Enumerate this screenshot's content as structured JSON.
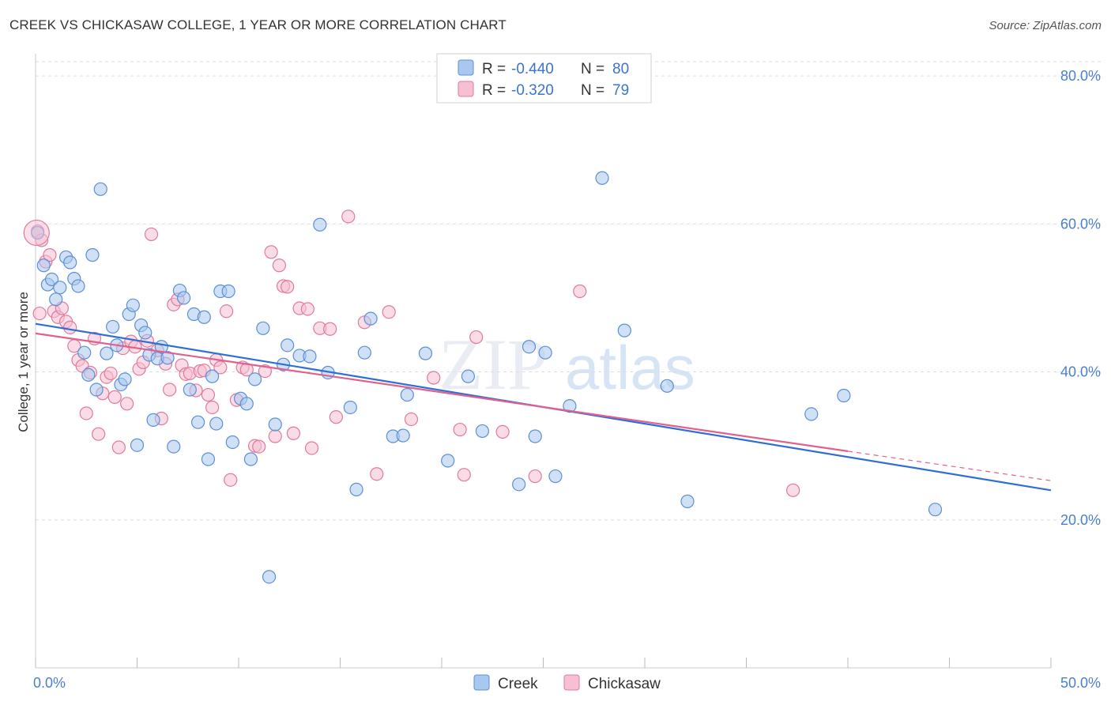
{
  "title": "CREEK VS CHICKASAW COLLEGE, 1 YEAR OR MORE CORRELATION CHART",
  "source": "Source: ZipAtlas.com",
  "watermark": {
    "zip": "ZIP",
    "atlas": "atlas"
  },
  "colors": {
    "creek_fill": "#a9c8ef",
    "creek_stroke": "#5b8fd6",
    "creek_line": "#2f6fd4",
    "chickasaw_fill": "#f6c0d2",
    "chickasaw_stroke": "#e07a9d",
    "chickasaw_line": "#e0608f",
    "grid": "#dddddd",
    "axis_text": "#4a7fd0"
  },
  "legend": {
    "rows": [
      {
        "r_label": "R =",
        "r_value": "-0.440",
        "n_label": "N =",
        "n_value": "80"
      },
      {
        "r_label": "R =",
        "r_value": "-0.320",
        "n_label": "N =",
        "n_value": "79"
      }
    ]
  },
  "chart_data": {
    "type": "scatter",
    "title": "CREEK VS CHICKASAW COLLEGE, 1 YEAR OR MORE CORRELATION CHART",
    "xlabel": "",
    "ylabel": "College, 1 year or more",
    "xlim": [
      0,
      50
    ],
    "ylim": [
      0,
      83
    ],
    "x_tick_labels": [
      {
        "value": 0,
        "label": "0.0%"
      },
      {
        "value": 50,
        "label": "50.0%"
      }
    ],
    "y_tick_labels": [
      {
        "value": 80,
        "label": "80.0%"
      },
      {
        "value": 60,
        "label": "60.0%"
      },
      {
        "value": 40,
        "label": "40.0%"
      },
      {
        "value": 20,
        "label": "20.0%"
      }
    ],
    "series": [
      {
        "name": "Creek",
        "regression": {
          "x0": 0,
          "y0": 46.5,
          "x1": 50,
          "y1": 24.0,
          "dash_from": null
        },
        "points": [
          [
            0.1,
            58.8
          ],
          [
            0.4,
            54.4
          ],
          [
            0.6,
            51.8
          ],
          [
            0.8,
            52.5
          ],
          [
            1.0,
            49.8
          ],
          [
            1.2,
            51.4
          ],
          [
            1.5,
            55.5
          ],
          [
            1.7,
            54.8
          ],
          [
            1.9,
            52.6
          ],
          [
            2.1,
            51.6
          ],
          [
            2.4,
            42.6
          ],
          [
            2.6,
            39.6
          ],
          [
            2.8,
            55.8
          ],
          [
            3.0,
            37.6
          ],
          [
            3.2,
            64.7
          ],
          [
            3.5,
            42.5
          ],
          [
            3.8,
            46.1
          ],
          [
            4.0,
            43.6
          ],
          [
            4.2,
            38.3
          ],
          [
            4.4,
            39.0
          ],
          [
            4.6,
            47.8
          ],
          [
            4.8,
            49.0
          ],
          [
            5.0,
            30.1
          ],
          [
            5.2,
            46.3
          ],
          [
            5.4,
            45.3
          ],
          [
            5.6,
            42.3
          ],
          [
            5.8,
            33.5
          ],
          [
            6.0,
            41.8
          ],
          [
            6.2,
            43.4
          ],
          [
            6.5,
            41.9
          ],
          [
            6.8,
            29.9
          ],
          [
            7.1,
            51.0
          ],
          [
            7.3,
            50.0
          ],
          [
            7.6,
            37.6
          ],
          [
            7.8,
            47.8
          ],
          [
            8.0,
            33.2
          ],
          [
            8.3,
            47.4
          ],
          [
            8.5,
            28.2
          ],
          [
            8.7,
            39.4
          ],
          [
            8.9,
            33.0
          ],
          [
            9.1,
            50.9
          ],
          [
            9.5,
            50.9
          ],
          [
            9.7,
            30.5
          ],
          [
            10.1,
            36.4
          ],
          [
            10.4,
            35.7
          ],
          [
            10.6,
            28.2
          ],
          [
            10.8,
            39.0
          ],
          [
            11.2,
            45.9
          ],
          [
            11.5,
            12.3
          ],
          [
            11.8,
            32.9
          ],
          [
            12.2,
            41.0
          ],
          [
            12.4,
            43.6
          ],
          [
            13.0,
            42.2
          ],
          [
            13.5,
            42.1
          ],
          [
            14.0,
            59.9
          ],
          [
            14.4,
            39.9
          ],
          [
            15.5,
            35.2
          ],
          [
            15.8,
            24.1
          ],
          [
            16.2,
            42.6
          ],
          [
            16.5,
            47.2
          ],
          [
            17.6,
            31.3
          ],
          [
            18.1,
            31.4
          ],
          [
            18.3,
            36.9
          ],
          [
            19.2,
            42.5
          ],
          [
            20.3,
            28.0
          ],
          [
            21.3,
            39.4
          ],
          [
            22.0,
            32.0
          ],
          [
            23.8,
            24.8
          ],
          [
            24.3,
            43.4
          ],
          [
            24.6,
            31.3
          ],
          [
            25.1,
            42.6
          ],
          [
            25.6,
            25.9
          ],
          [
            26.3,
            35.4
          ],
          [
            27.9,
            66.2
          ],
          [
            29.0,
            45.6
          ],
          [
            31.1,
            38.1
          ],
          [
            32.1,
            22.5
          ],
          [
            38.2,
            34.3
          ],
          [
            39.8,
            36.8
          ],
          [
            44.3,
            21.4
          ]
        ]
      },
      {
        "name": "Chickasaw",
        "regression": {
          "x0": 0,
          "y0": 45.2,
          "x1": 50,
          "y1": 25.3,
          "dash_from": 40
        },
        "points": [
          [
            0.1,
            59.0
          ],
          [
            0.3,
            57.8
          ],
          [
            0.5,
            54.9
          ],
          [
            0.7,
            55.8
          ],
          [
            0.9,
            48.2
          ],
          [
            1.1,
            47.4
          ],
          [
            1.3,
            48.6
          ],
          [
            1.5,
            46.8
          ],
          [
            1.7,
            46.0
          ],
          [
            1.9,
            43.5
          ],
          [
            2.1,
            41.6
          ],
          [
            2.3,
            40.8
          ],
          [
            2.5,
            34.4
          ],
          [
            2.7,
            39.9
          ],
          [
            2.9,
            44.5
          ],
          [
            3.1,
            31.6
          ],
          [
            3.3,
            37.1
          ],
          [
            3.5,
            39.3
          ],
          [
            3.7,
            39.8
          ],
          [
            3.9,
            36.6
          ],
          [
            4.1,
            29.8
          ],
          [
            4.3,
            43.2
          ],
          [
            4.5,
            35.7
          ],
          [
            4.7,
            44.1
          ],
          [
            4.9,
            43.4
          ],
          [
            5.1,
            40.4
          ],
          [
            5.3,
            41.3
          ],
          [
            5.5,
            44.2
          ],
          [
            5.7,
            58.6
          ],
          [
            6.0,
            42.9
          ],
          [
            6.2,
            33.7
          ],
          [
            6.4,
            41.1
          ],
          [
            6.6,
            37.6
          ],
          [
            6.8,
            49.1
          ],
          [
            7.0,
            49.8
          ],
          [
            7.2,
            40.9
          ],
          [
            7.4,
            39.7
          ],
          [
            7.6,
            39.8
          ],
          [
            7.9,
            37.5
          ],
          [
            8.1,
            40.1
          ],
          [
            8.3,
            40.2
          ],
          [
            8.5,
            36.9
          ],
          [
            8.7,
            35.2
          ],
          [
            8.9,
            41.6
          ],
          [
            9.1,
            40.6
          ],
          [
            9.4,
            48.2
          ],
          [
            9.6,
            25.4
          ],
          [
            9.9,
            36.2
          ],
          [
            10.2,
            40.6
          ],
          [
            10.4,
            40.3
          ],
          [
            10.8,
            30.0
          ],
          [
            11.0,
            29.9
          ],
          [
            11.3,
            40.1
          ],
          [
            11.6,
            56.2
          ],
          [
            11.8,
            31.3
          ],
          [
            12.0,
            54.4
          ],
          [
            12.2,
            51.6
          ],
          [
            12.4,
            51.5
          ],
          [
            12.7,
            31.7
          ],
          [
            13.0,
            48.6
          ],
          [
            13.4,
            48.5
          ],
          [
            13.6,
            29.7
          ],
          [
            14.0,
            45.9
          ],
          [
            14.5,
            45.8
          ],
          [
            14.8,
            33.9
          ],
          [
            15.4,
            61.0
          ],
          [
            16.2,
            46.7
          ],
          [
            16.8,
            26.2
          ],
          [
            17.4,
            48.1
          ],
          [
            18.5,
            33.6
          ],
          [
            19.6,
            39.2
          ],
          [
            20.9,
            32.2
          ],
          [
            21.1,
            26.1
          ],
          [
            21.7,
            44.7
          ],
          [
            23.0,
            31.9
          ],
          [
            24.6,
            25.9
          ],
          [
            26.8,
            50.9
          ],
          [
            37.3,
            24.0
          ],
          [
            0.2,
            47.9
          ]
        ]
      }
    ]
  },
  "bottom_legend": {
    "creek_label": "Creek",
    "chickasaw_label": "Chickasaw"
  }
}
